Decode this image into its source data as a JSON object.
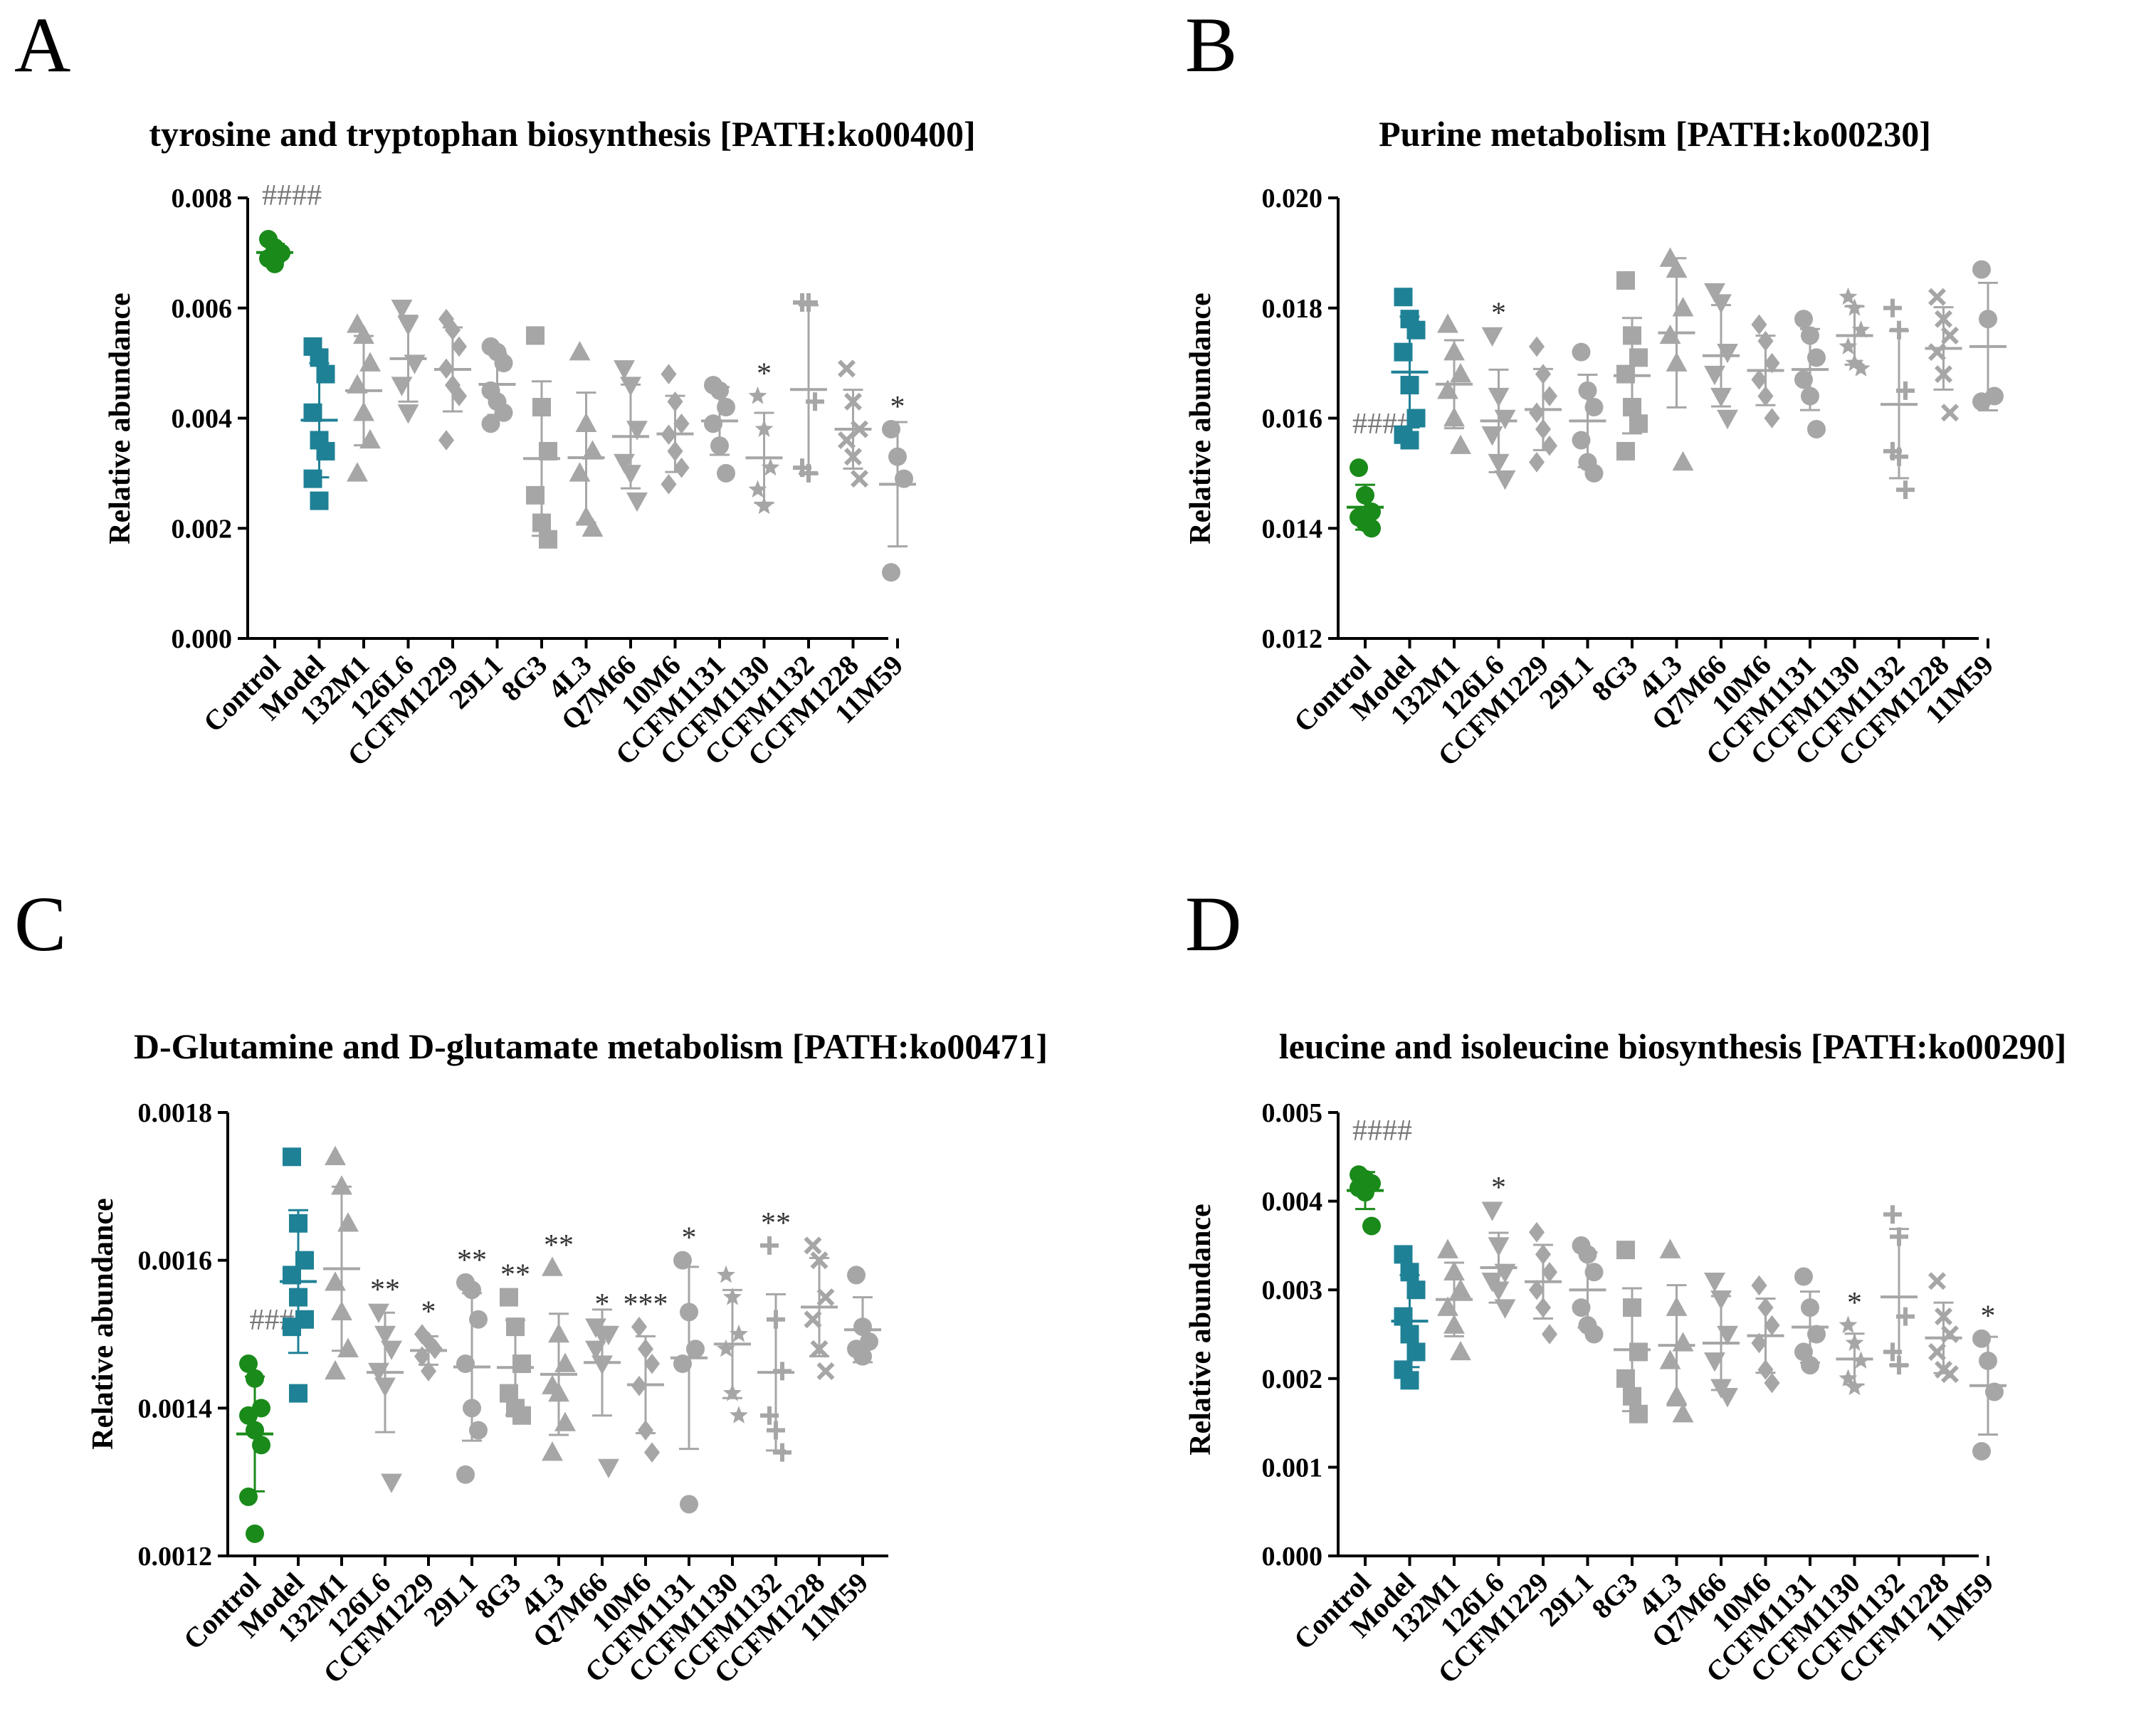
{
  "colors": {
    "control": "#1a8a1a",
    "model": "#1f8196",
    "strain": "#a6a6a6",
    "text": "#000000"
  },
  "chart_data": [
    {
      "panel": "A",
      "type": "scatter",
      "title": "tyrosine and tryptophan biosynthesis [PATH:ko00400]",
      "xlabel": "",
      "ylabel": "Relative abundance",
      "ylim": [
        0,
        0.008
      ],
      "yticks": [
        "0.000",
        "0.002",
        "0.004",
        "0.006",
        "0.008"
      ],
      "ytick_values": [
        0,
        0.002,
        0.004,
        0.006,
        0.008
      ],
      "categories": [
        "Control",
        "Model",
        "132M1",
        "126L6",
        "CCFM1229",
        "29L1",
        "8G3",
        "4L3",
        "Q7M66",
        "10M6",
        "CCFM1131",
        "CCFM1130",
        "CCFM1132",
        "CCFM1228",
        "11M59"
      ],
      "markers": [
        "circle",
        "square",
        "triangle",
        "tri-down",
        "diamond",
        "circle",
        "square",
        "triangle",
        "tri-down",
        "diamond",
        "circle",
        "star",
        "plus",
        "cross",
        "circle"
      ],
      "significance": [
        "####",
        "",
        "",
        "",
        "",
        "",
        "",
        "",
        "",
        "",
        "",
        "*",
        "",
        "",
        "*"
      ],
      "series": [
        {
          "name": "Control",
          "values": [
            0.00725,
            0.0071,
            0.007,
            0.0069,
            0.0068,
            0.007
          ]
        },
        {
          "name": "Model",
          "values": [
            0.0053,
            0.0051,
            0.0048,
            0.0041,
            0.0036,
            0.0034,
            0.0029,
            0.0025
          ]
        },
        {
          "name": "132M1",
          "values": [
            0.0057,
            0.0055,
            0.005,
            0.0046,
            0.0041,
            0.0036,
            0.003
          ]
        },
        {
          "name": "126L6",
          "values": [
            0.006,
            0.0057,
            0.005,
            0.0046,
            0.0041
          ]
        },
        {
          "name": "CCFM1229",
          "values": [
            0.0058,
            0.0056,
            0.0053,
            0.0049,
            0.0046,
            0.0044,
            0.0036
          ]
        },
        {
          "name": "29L1",
          "values": [
            0.0053,
            0.0052,
            0.005,
            0.0045,
            0.0043,
            0.0041,
            0.0039
          ]
        },
        {
          "name": "8G3",
          "values": [
            0.0055,
            0.0042,
            0.0034,
            0.0026,
            0.0021,
            0.0018
          ]
        },
        {
          "name": "4L3",
          "values": [
            0.0052,
            0.0039,
            0.0034,
            0.003,
            0.0022,
            0.002
          ]
        },
        {
          "name": "Q7M66",
          "values": [
            0.0049,
            0.0046,
            0.0038,
            0.0032,
            0.003,
            0.0025
          ]
        },
        {
          "name": "10M6",
          "values": [
            0.0048,
            0.0043,
            0.0039,
            0.0037,
            0.0034,
            0.0031,
            0.0028
          ]
        },
        {
          "name": "CCFM1131",
          "values": [
            0.0046,
            0.0045,
            0.0042,
            0.0039,
            0.0035,
            0.003
          ]
        },
        {
          "name": "CCFM1130",
          "values": [
            0.0044,
            0.0038,
            0.0031,
            0.0027,
            0.0024
          ]
        },
        {
          "name": "CCFM1132",
          "values": [
            0.0061,
            0.0061,
            0.0043,
            0.0031,
            0.003
          ]
        },
        {
          "name": "CCFM1228",
          "values": [
            0.0049,
            0.0043,
            0.0038,
            0.0036,
            0.0033,
            0.0029
          ]
        },
        {
          "name": "11M59",
          "values": [
            0.0038,
            0.0033,
            0.0029,
            0.0012
          ]
        }
      ]
    },
    {
      "panel": "B",
      "type": "scatter",
      "title": "Purine metabolism [PATH:ko00230]",
      "xlabel": "",
      "ylabel": "Relative abundance",
      "ylim": [
        0.012,
        0.02
      ],
      "yticks": [
        "0.012",
        "0.014",
        "0.016",
        "0.018",
        "0.020"
      ],
      "ytick_values": [
        0.012,
        0.014,
        0.016,
        0.018,
        0.02
      ],
      "categories": [
        "Control",
        "Model",
        "132M1",
        "126L6",
        "CCFM1229",
        "29L1",
        "8G3",
        "4L3",
        "Q7M66",
        "10M6",
        "CCFM1131",
        "CCFM1130",
        "CCFM1132",
        "CCFM1228",
        "11M59"
      ],
      "markers": [
        "circle",
        "square",
        "triangle",
        "tri-down",
        "diamond",
        "circle",
        "square",
        "triangle",
        "tri-down",
        "diamond",
        "circle",
        "star",
        "plus",
        "cross",
        "circle"
      ],
      "significance": [
        "####",
        "",
        "",
        "*",
        "",
        "",
        "",
        "",
        "",
        "",
        "",
        "",
        "",
        "",
        ""
      ],
      "series": [
        {
          "name": "Control",
          "values": [
            0.0151,
            0.0146,
            0.0143,
            0.0142,
            0.0141,
            0.014
          ]
        },
        {
          "name": "Model",
          "values": [
            0.0182,
            0.0178,
            0.0176,
            0.0172,
            0.0166,
            0.016,
            0.0157,
            0.0156
          ]
        },
        {
          "name": "132M1",
          "values": [
            0.0177,
            0.0172,
            0.0168,
            0.0165,
            0.016,
            0.0155
          ]
        },
        {
          "name": "126L6",
          "values": [
            0.0175,
            0.0164,
            0.016,
            0.0157,
            0.0152,
            0.0149
          ]
        },
        {
          "name": "CCFM1229",
          "values": [
            0.0173,
            0.0168,
            0.0164,
            0.0161,
            0.0158,
            0.0155,
            0.0152
          ]
        },
        {
          "name": "29L1",
          "values": [
            0.0172,
            0.0165,
            0.0162,
            0.0156,
            0.0152,
            0.015
          ]
        },
        {
          "name": "8G3",
          "values": [
            0.0185,
            0.0175,
            0.0171,
            0.0168,
            0.0162,
            0.0159,
            0.0154
          ]
        },
        {
          "name": "4L3",
          "values": [
            0.0189,
            0.0187,
            0.018,
            0.0175,
            0.017,
            0.0152
          ]
        },
        {
          "name": "Q7M66",
          "values": [
            0.0183,
            0.0181,
            0.0172,
            0.0168,
            0.0164,
            0.016
          ]
        },
        {
          "name": "10M6",
          "values": [
            0.0177,
            0.0174,
            0.017,
            0.0167,
            0.0164,
            0.016
          ]
        },
        {
          "name": "CCFM1131",
          "values": [
            0.0178,
            0.0175,
            0.0171,
            0.0167,
            0.0164,
            0.0158
          ]
        },
        {
          "name": "CCFM1130",
          "values": [
            0.0182,
            0.018,
            0.0176,
            0.0173,
            0.017,
            0.0169
          ]
        },
        {
          "name": "CCFM1132",
          "values": [
            0.018,
            0.0176,
            0.0165,
            0.0154,
            0.0153,
            0.0147
          ]
        },
        {
          "name": "CCFM1228",
          "values": [
            0.0182,
            0.0178,
            0.0175,
            0.0172,
            0.0168,
            0.0161
          ]
        },
        {
          "name": "11M59",
          "values": [
            0.0187,
            0.0178,
            0.0164,
            0.0163
          ]
        }
      ]
    },
    {
      "panel": "C",
      "type": "scatter",
      "title": "D-Glutamine and D-glutamate metabolism [PATH:ko00471]",
      "xlabel": "",
      "ylabel": "Relative abundance",
      "ylim": [
        0.0012,
        0.0018
      ],
      "yticks": [
        "0.0012",
        "0.0014",
        "0.0016",
        "0.0018"
      ],
      "ytick_values": [
        0.0012,
        0.0014,
        0.0016,
        0.0018
      ],
      "categories": [
        "Control",
        "Model",
        "132M1",
        "126L6",
        "CCFM1229",
        "29L1",
        "8G3",
        "4L3",
        "Q7M66",
        "10M6",
        "CCFM1131",
        "CCFM1130",
        "CCFM1132",
        "CCFM1228",
        "11M59"
      ],
      "markers": [
        "circle",
        "square",
        "triangle",
        "tri-down",
        "diamond",
        "circle",
        "square",
        "triangle",
        "tri-down",
        "diamond",
        "circle",
        "star",
        "plus",
        "cross",
        "circle"
      ],
      "significance": [
        "###",
        "",
        "",
        "**",
        "*",
        "**",
        "**",
        "**",
        "*",
        "***",
        "*",
        "",
        "**",
        "",
        ""
      ],
      "series": [
        {
          "name": "Control",
          "values": [
            0.00146,
            0.00144,
            0.0014,
            0.00139,
            0.00137,
            0.00135,
            0.00128,
            0.00123
          ]
        },
        {
          "name": "Model",
          "values": [
            0.00174,
            0.00165,
            0.0016,
            0.00158,
            0.00155,
            0.00152,
            0.00151,
            0.00142
          ]
        },
        {
          "name": "132M1",
          "values": [
            0.00174,
            0.0017,
            0.00165,
            0.00157,
            0.00153,
            0.00148,
            0.00145
          ]
        },
        {
          "name": "126L6",
          "values": [
            0.00153,
            0.0015,
            0.00148,
            0.00145,
            0.00143,
            0.0013
          ]
        },
        {
          "name": "CCFM1229",
          "values": [
            0.0015,
            0.00149,
            0.00148,
            0.00147,
            0.00145
          ]
        },
        {
          "name": "29L1",
          "values": [
            0.00157,
            0.00156,
            0.00152,
            0.00146,
            0.0014,
            0.00137,
            0.00131
          ]
        },
        {
          "name": "8G3",
          "values": [
            0.00155,
            0.00151,
            0.00146,
            0.00142,
            0.0014,
            0.00139
          ]
        },
        {
          "name": "4L3",
          "values": [
            0.00159,
            0.0015,
            0.00146,
            0.00143,
            0.00142,
            0.00138,
            0.00134
          ]
        },
        {
          "name": "Q7M66",
          "values": [
            0.00151,
            0.0015,
            0.0015,
            0.00148,
            0.00146,
            0.00132
          ]
        },
        {
          "name": "10M6",
          "values": [
            0.00151,
            0.00148,
            0.00146,
            0.00143,
            0.00137,
            0.00134
          ]
        },
        {
          "name": "CCFM1131",
          "values": [
            0.0016,
            0.00153,
            0.00148,
            0.00146,
            0.00127
          ]
        },
        {
          "name": "CCFM1130",
          "values": [
            0.00158,
            0.00155,
            0.0015,
            0.00148,
            0.00142,
            0.00139
          ]
        },
        {
          "name": "CCFM1132",
          "values": [
            0.00162,
            0.00152,
            0.00145,
            0.00139,
            0.00137,
            0.00134
          ]
        },
        {
          "name": "CCFM1228",
          "values": [
            0.00162,
            0.0016,
            0.00155,
            0.00152,
            0.00148,
            0.00145
          ]
        },
        {
          "name": "11M59",
          "values": [
            0.00158,
            0.00151,
            0.00149,
            0.00148,
            0.00147
          ]
        }
      ]
    },
    {
      "panel": "D",
      "type": "scatter",
      "title": "leucine and isoleucine biosynthesis [PATH:ko00290]",
      "xlabel": "",
      "ylabel": "Relative abundance",
      "ylim": [
        0,
        0.005
      ],
      "yticks": [
        "0.000",
        "0.001",
        "0.002",
        "0.003",
        "0.004",
        "0.005"
      ],
      "ytick_values": [
        0,
        0.001,
        0.002,
        0.003,
        0.004,
        0.005
      ],
      "categories": [
        "Control",
        "Model",
        "132M1",
        "126L6",
        "CCFM1229",
        "29L1",
        "8G3",
        "4L3",
        "Q7M66",
        "10M6",
        "CCFM1131",
        "CCFM1130",
        "CCFM1132",
        "CCFM1228",
        "11M59"
      ],
      "markers": [
        "circle",
        "square",
        "triangle",
        "tri-down",
        "diamond",
        "circle",
        "square",
        "triangle",
        "tri-down",
        "diamond",
        "circle",
        "star",
        "plus",
        "cross",
        "circle"
      ],
      "significance": [
        "####",
        "",
        "",
        "*",
        "",
        "",
        "",
        "",
        "",
        "",
        "",
        "*",
        "",
        "",
        "*"
      ],
      "series": [
        {
          "name": "Control",
          "values": [
            0.0043,
            0.00425,
            0.0042,
            0.00415,
            0.0041,
            0.00372
          ]
        },
        {
          "name": "Model",
          "values": [
            0.0034,
            0.0032,
            0.003,
            0.0027,
            0.0025,
            0.0023,
            0.0021,
            0.00198
          ]
        },
        {
          "name": "132M1",
          "values": [
            0.00345,
            0.0032,
            0.003,
            0.0028,
            0.0026,
            0.0023
          ]
        },
        {
          "name": "126L6",
          "values": [
            0.0039,
            0.0035,
            0.0032,
            0.0031,
            0.003,
            0.0028
          ]
        },
        {
          "name": "CCFM1229",
          "values": [
            0.00365,
            0.0034,
            0.0032,
            0.003,
            0.0028,
            0.0025
          ]
        },
        {
          "name": "29L1",
          "values": [
            0.0035,
            0.0034,
            0.0032,
            0.0028,
            0.0026,
            0.0025
          ]
        },
        {
          "name": "8G3",
          "values": [
            0.00345,
            0.0028,
            0.0023,
            0.002,
            0.0018,
            0.0016
          ]
        },
        {
          "name": "4L3",
          "values": [
            0.00345,
            0.0028,
            0.0024,
            0.0022,
            0.0018,
            0.0016
          ]
        },
        {
          "name": "Q7M66",
          "values": [
            0.0031,
            0.0029,
            0.0025,
            0.0022,
            0.0019,
            0.0018
          ]
        },
        {
          "name": "10M6",
          "values": [
            0.00305,
            0.0028,
            0.0026,
            0.0024,
            0.0021,
            0.00195
          ]
        },
        {
          "name": "CCFM1131",
          "values": [
            0.00315,
            0.0028,
            0.0025,
            0.0023,
            0.00215
          ]
        },
        {
          "name": "CCFM1130",
          "values": [
            0.0026,
            0.0024,
            0.0022,
            0.002,
            0.0019
          ]
        },
        {
          "name": "CCFM1132",
          "values": [
            0.00385,
            0.0036,
            0.0027,
            0.0023,
            0.00215
          ]
        },
        {
          "name": "CCFM1228",
          "values": [
            0.0031,
            0.0027,
            0.0025,
            0.0023,
            0.0021,
            0.00205
          ]
        },
        {
          "name": "11M59",
          "values": [
            0.00245,
            0.0022,
            0.00185,
            0.00118
          ]
        }
      ]
    }
  ]
}
